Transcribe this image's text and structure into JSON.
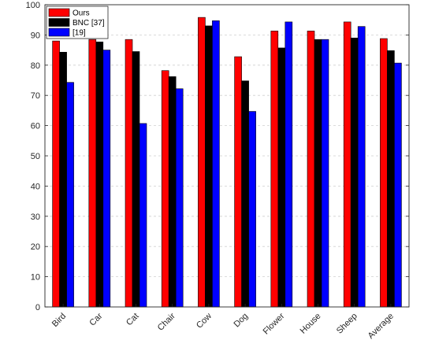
{
  "chart_data": {
    "type": "bar",
    "categories": [
      "Bird",
      "Car",
      "Cat",
      "Chair",
      "Cow",
      "Dog",
      "Flower",
      "House",
      "Sheep",
      "Average"
    ],
    "series": [
      {
        "name": "Ours",
        "color": "#ff0000",
        "values": [
          88.0,
          88.5,
          88.5,
          78.2,
          95.8,
          82.8,
          91.3,
          91.3,
          94.3,
          88.8
        ]
      },
      {
        "name": "BNC [37]",
        "color": "#000000",
        "values": [
          84.3,
          87.7,
          84.5,
          76.2,
          93.0,
          74.8,
          85.7,
          88.5,
          89.0,
          84.8
        ]
      },
      {
        "name": "[19]",
        "color": "#0000ff",
        "values": [
          74.3,
          85.0,
          60.7,
          72.2,
          94.7,
          64.7,
          94.3,
          88.5,
          92.8,
          80.7
        ]
      }
    ],
    "ylim": [
      0,
      100
    ],
    "yticks": [
      0,
      10,
      20,
      30,
      40,
      50,
      60,
      70,
      80,
      90,
      100
    ],
    "grid": "horizontal-dashed",
    "legend_position": "top-left",
    "xtick_rotation": -45
  }
}
